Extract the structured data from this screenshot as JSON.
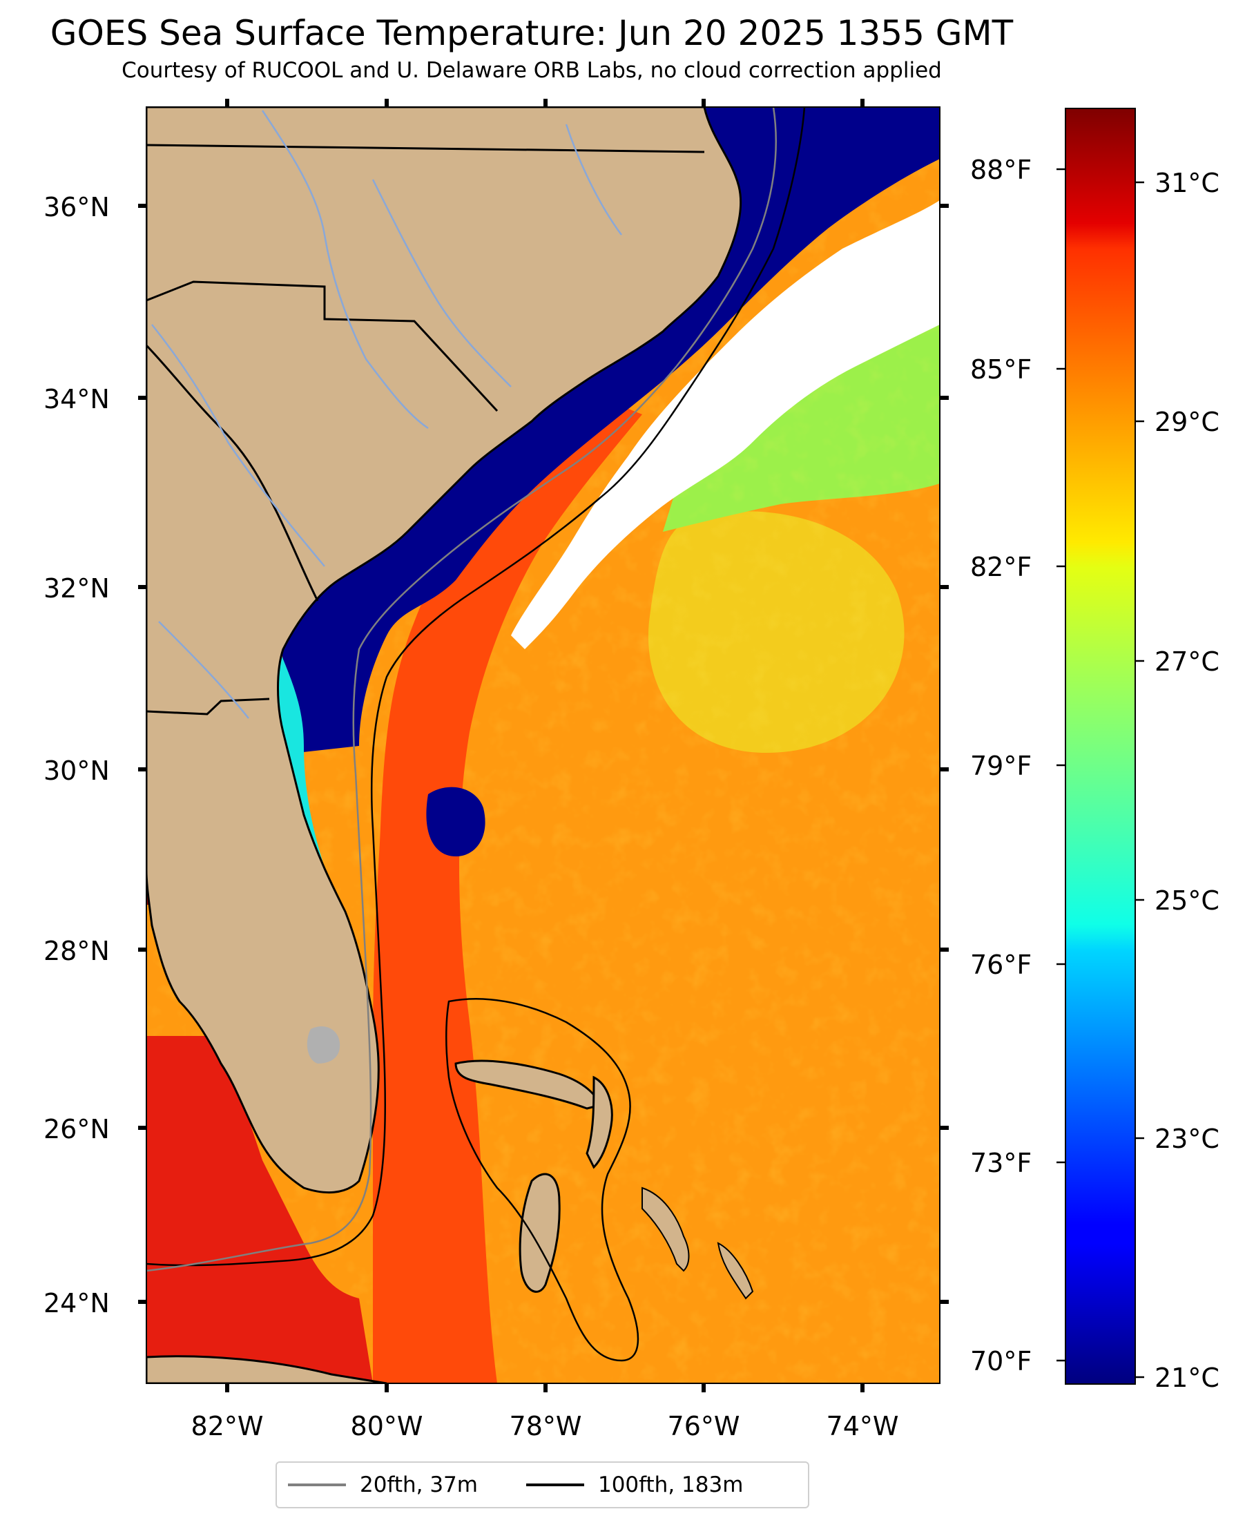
{
  "title": "GOES Sea Surface Temperature: Jun 20 2025 1355 GMT",
  "subtitle": "Courtesy of RUCOOL and U. Delaware ORB Labs, no cloud correction applied",
  "lat_labels": [
    "36°N",
    "34°N",
    "32°N",
    "30°N",
    "28°N",
    "26°N",
    "24°N"
  ],
  "lon_labels": [
    "82°W",
    "80°W",
    "78°W",
    "76°W",
    "74°W"
  ],
  "fahrenheit_labels": [
    "88°F",
    "85°F",
    "82°F",
    "79°F",
    "76°F",
    "73°F",
    "70°F"
  ],
  "celsius_labels": [
    "31°C",
    "29°C",
    "27°C",
    "25°C",
    "23°C",
    "21°C"
  ],
  "legend": {
    "isobath_20": {
      "label": "20fth, 37m",
      "color": "#808080"
    },
    "isobath_100": {
      "label": "100fth, 183m",
      "color": "#000000"
    }
  },
  "colors": {
    "land": "#d2b48c",
    "cloud": "#ffffff",
    "cold_shelf": "#00008b",
    "gulf_stream": "#ff5a10",
    "sargasso": "#ff9a10",
    "shelf_edge": "#19e6e0",
    "warm_core": "#e8f020",
    "hot_gulf": "#e61e10",
    "river": "#8aa8d8"
  },
  "colorbar": {
    "min_c": 20.75,
    "max_c": 31.75,
    "colormap": "jet"
  }
}
